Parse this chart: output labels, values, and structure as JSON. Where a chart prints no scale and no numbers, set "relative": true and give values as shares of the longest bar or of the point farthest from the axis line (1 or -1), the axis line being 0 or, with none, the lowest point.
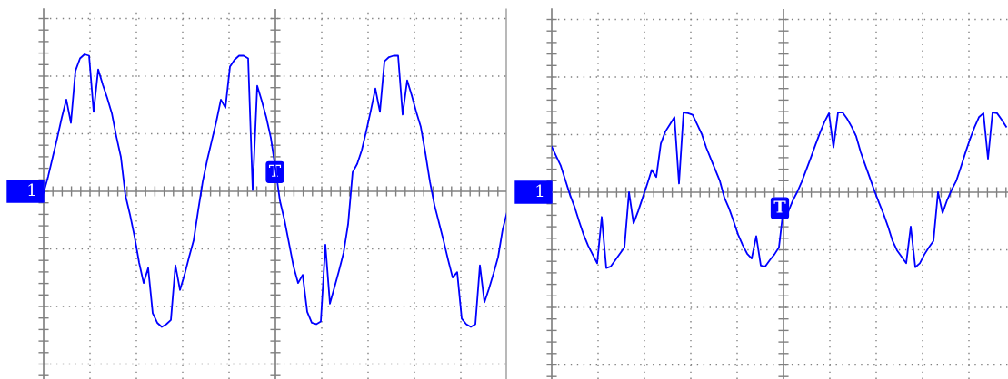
{
  "chart_data": [
    {
      "type": "line",
      "relative": true,
      "grid": true,
      "tick_labels": false,
      "categories": [
        null,
        null,
        null,
        null,
        null,
        null,
        null,
        null,
        null,
        null,
        null,
        null,
        null,
        null,
        null,
        null,
        null,
        null,
        null,
        null,
        null,
        null,
        null,
        null,
        null,
        null,
        null,
        null,
        null,
        null,
        null,
        null,
        null,
        null,
        null,
        null,
        null,
        null,
        null,
        null,
        null,
        null,
        null,
        null,
        null,
        null,
        null,
        null,
        null,
        null,
        null,
        null,
        null,
        null,
        null,
        null,
        null,
        null,
        null,
        null,
        null,
        null,
        null,
        null,
        null,
        null,
        null,
        null,
        null,
        null,
        null,
        null,
        null,
        null,
        null,
        null,
        null,
        null,
        null,
        null,
        null,
        null,
        null,
        null,
        null,
        null,
        null,
        null,
        null,
        null,
        null,
        null,
        null,
        null,
        null,
        null,
        null,
        null,
        null,
        null,
        null,
        null,
        null
      ],
      "series": [
        {
          "color": "#0000ff",
          "values": [
            -0.01,
            0.11,
            0.25,
            0.39,
            0.54,
            0.67,
            0.5,
            0.88,
            0.97,
            1.0,
            0.99,
            0.58,
            0.89,
            0.78,
            0.68,
            0.57,
            0.4,
            0.25,
            -0.03,
            -0.17,
            -0.33,
            -0.52,
            -0.67,
            -0.56,
            -0.89,
            -0.96,
            -0.99,
            -0.97,
            -0.94,
            -0.54,
            -0.72,
            -0.61,
            -0.48,
            -0.36,
            -0.14,
            0.07,
            0.23,
            0.37,
            0.51,
            0.67,
            0.61,
            0.91,
            0.96,
            0.99,
            0.99,
            0.97,
            0.01,
            0.77,
            0.66,
            0.54,
            0.39,
            0.17,
            -0.07,
            -0.21,
            -0.38,
            -0.55,
            -0.67,
            -0.61,
            -0.88,
            -0.96,
            -0.97,
            -0.95,
            -0.39,
            -0.82,
            -0.7,
            -0.58,
            -0.45,
            -0.24,
            0.14,
            0.2,
            0.3,
            0.44,
            0.59,
            0.75,
            0.58,
            0.95,
            0.98,
            0.99,
            0.99,
            0.56,
            0.81,
            0.7,
            0.58,
            0.47,
            0.28,
            0.07,
            -0.1,
            -0.23,
            -0.36,
            -0.5,
            -0.63,
            -0.59,
            -0.93,
            -0.97,
            -0.99,
            -0.97,
            -0.54,
            -0.81,
            -0.71,
            -0.6,
            -0.48,
            -0.28,
            -0.15
          ]
        }
      ],
      "annotations": [
        "1",
        {
          "text": "T",
          "y": 0.14
        }
      ]
    },
    {
      "type": "line",
      "relative": true,
      "grid": true,
      "tick_labels": false,
      "categories": [
        null,
        null,
        null,
        null,
        null,
        null,
        null,
        null,
        null,
        null,
        null,
        null,
        null,
        null,
        null,
        null,
        null,
        null,
        null,
        null,
        null,
        null,
        null,
        null,
        null,
        null,
        null,
        null,
        null,
        null,
        null,
        null,
        null,
        null,
        null,
        null,
        null,
        null,
        null,
        null,
        null,
        null,
        null,
        null,
        null,
        null,
        null,
        null,
        null,
        null,
        null,
        null,
        null,
        null,
        null,
        null,
        null,
        null,
        null,
        null,
        null,
        null,
        null,
        null,
        null,
        null,
        null,
        null,
        null,
        null,
        null,
        null,
        null,
        null,
        null,
        null,
        null,
        null,
        null,
        null,
        null,
        null,
        null,
        null,
        null,
        null,
        null,
        null,
        null,
        null,
        null,
        null,
        null,
        null,
        null,
        null,
        null,
        null,
        null,
        null,
        null
      ],
      "series": [
        {
          "color": "#0000ff",
          "values": [
            0.57,
            0.45,
            0.33,
            0.15,
            -0.03,
            -0.18,
            -0.36,
            -0.53,
            -0.67,
            -0.78,
            -0.89,
            -0.31,
            -0.95,
            -0.93,
            -0.85,
            -0.77,
            -0.69,
            0.0,
            -0.39,
            -0.24,
            -0.07,
            0.1,
            0.28,
            0.19,
            0.61,
            0.76,
            0.85,
            0.94,
            0.11,
            1.0,
            0.99,
            0.97,
            0.85,
            0.73,
            0.56,
            0.42,
            0.28,
            0.14,
            -0.07,
            -0.2,
            -0.36,
            -0.53,
            -0.66,
            -0.77,
            -0.83,
            -0.55,
            -0.92,
            -0.93,
            -0.85,
            -0.78,
            -0.69,
            -0.2,
            -0.25,
            -0.11,
            0.0,
            0.13,
            0.28,
            0.43,
            0.59,
            0.74,
            0.88,
            0.99,
            0.56,
            1.0,
            1.0,
            0.92,
            0.82,
            0.7,
            0.5,
            0.34,
            0.18,
            0.02,
            -0.13,
            -0.27,
            -0.43,
            -0.61,
            -0.73,
            -0.81,
            -0.89,
            -0.43,
            -0.94,
            -0.89,
            -0.78,
            -0.69,
            -0.61,
            0.0,
            -0.26,
            -0.1,
            0.03,
            0.14,
            0.31,
            0.49,
            0.66,
            0.81,
            0.94,
            0.99,
            0.42,
            1.0,
            0.99,
            0.91,
            0.82
          ]
        }
      ],
      "annotations": [
        "1",
        {
          "text": "T",
          "y": -0.2
        }
      ]
    }
  ]
}
